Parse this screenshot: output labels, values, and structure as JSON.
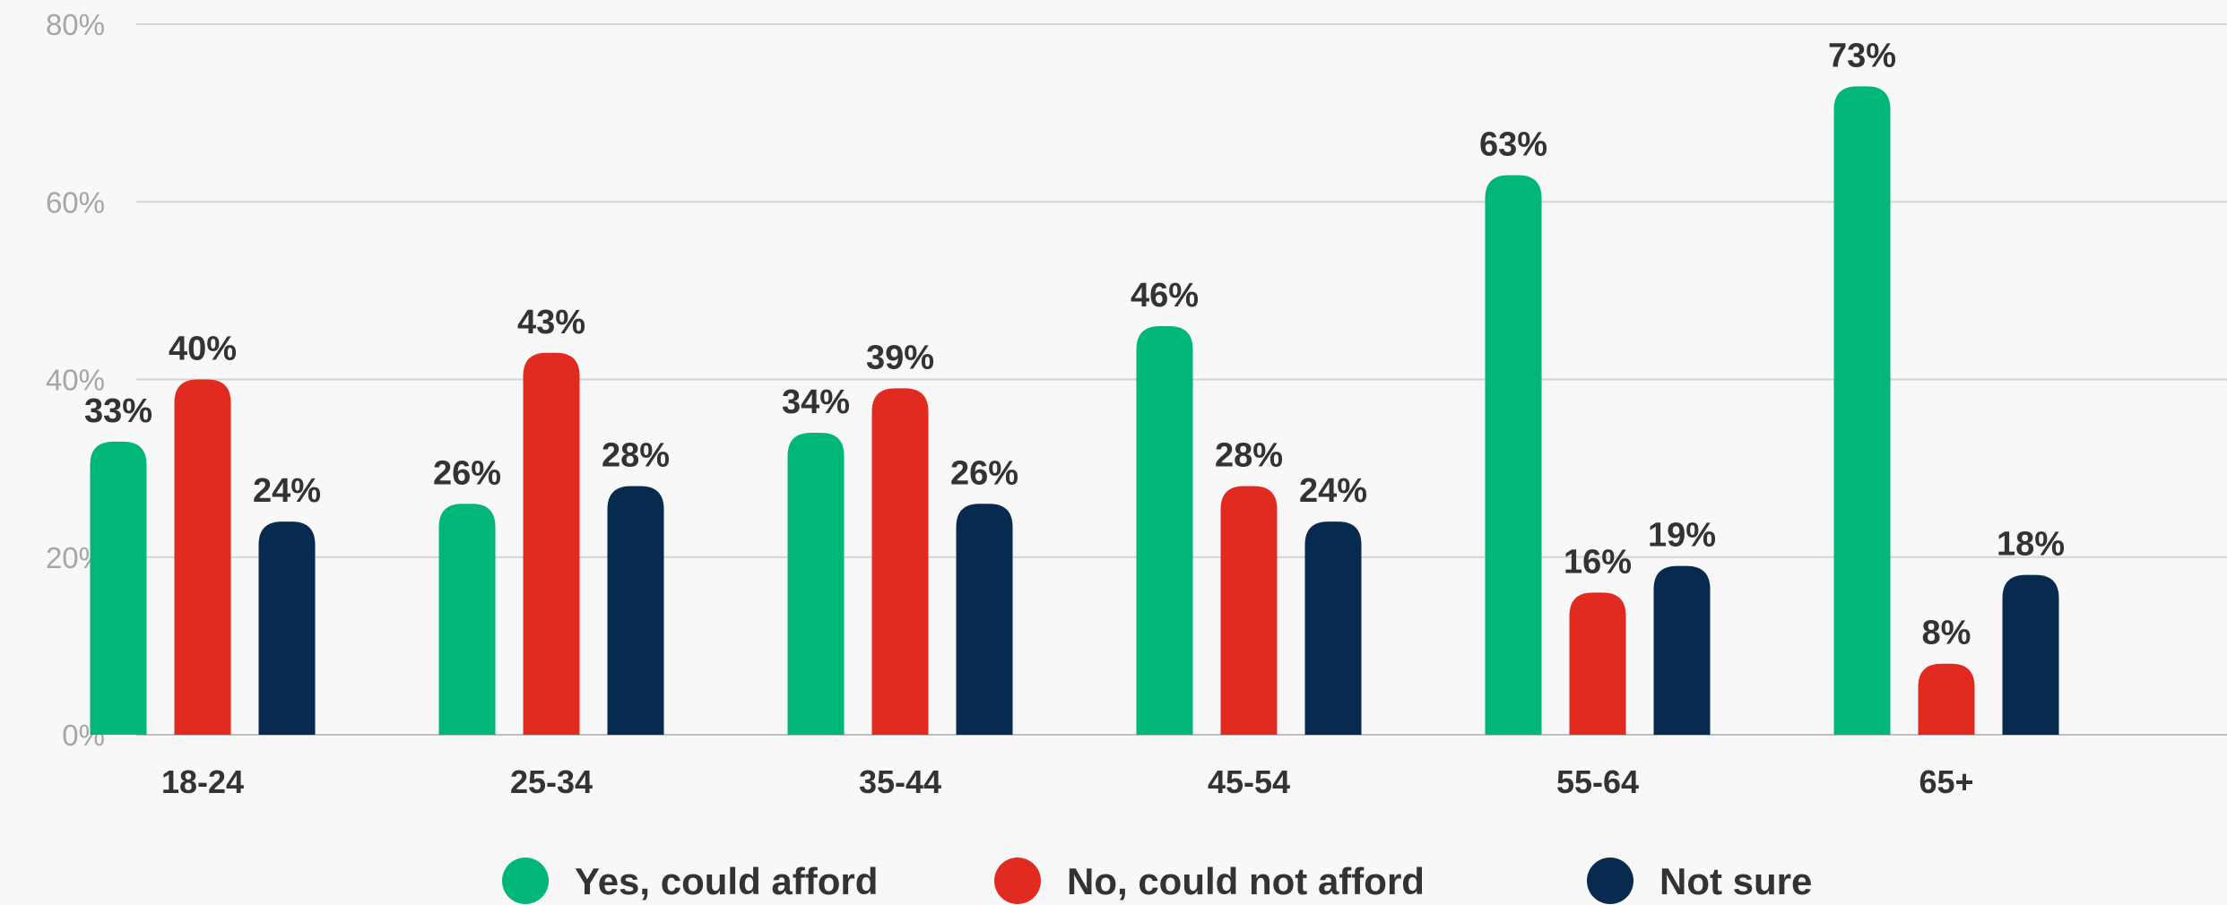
{
  "chart_data": {
    "type": "bar",
    "categories": [
      "18-24",
      "25-34",
      "35-44",
      "45-54",
      "55-64",
      "65+"
    ],
    "series": [
      {
        "name": "Yes, could afford",
        "color": "#00b67a",
        "values": [
          33,
          26,
          34,
          46,
          63,
          73
        ]
      },
      {
        "name": "No, could not afford",
        "color": "#e22b20",
        "values": [
          40,
          43,
          39,
          28,
          16,
          8
        ]
      },
      {
        "name": "Not sure",
        "color": "#082a4f",
        "values": [
          24,
          28,
          26,
          24,
          19,
          18
        ]
      }
    ],
    "y_ticks": [
      "0%",
      "20%",
      "40%",
      "60%",
      "80%"
    ],
    "ylim": [
      0,
      80
    ],
    "grid": true,
    "legend_position": "bottom-center",
    "value_suffix": "%"
  }
}
